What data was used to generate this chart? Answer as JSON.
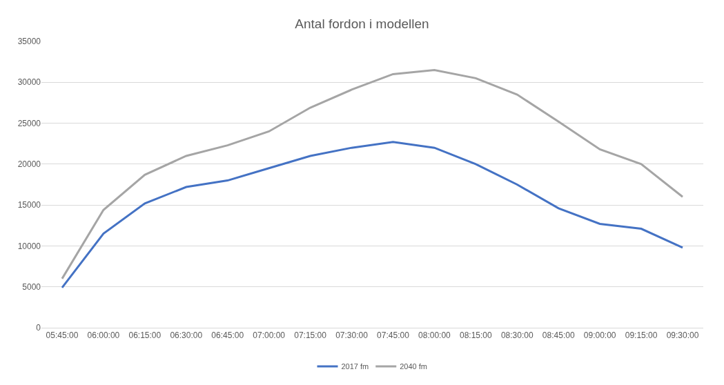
{
  "chart_data": {
    "type": "line",
    "title": "Antal fordon i modellen",
    "categories": [
      "05:45:00",
      "06:00:00",
      "06:15:00",
      "06:30:00",
      "06:45:00",
      "07:00:00",
      "07:15:00",
      "07:30:00",
      "07:45:00",
      "08:00:00",
      "08:15:00",
      "08:30:00",
      "08:45:00",
      "09:00:00",
      "09:15:00",
      "09:30:00"
    ],
    "series": [
      {
        "name": "2017 fm",
        "color": "#4472c4",
        "values": [
          4900,
          11500,
          15200,
          17200,
          18000,
          19500,
          21000,
          22000,
          22700,
          22000,
          20000,
          17500,
          14600,
          12700,
          12100,
          9800
        ]
      },
      {
        "name": "2040 fm",
        "color": "#a5a5a5",
        "values": [
          6000,
          14400,
          18700,
          21000,
          22300,
          24000,
          26900,
          29100,
          31000,
          31500,
          30500,
          28500,
          25200,
          21800,
          20000,
          16000
        ]
      }
    ],
    "ylim": [
      0,
      35000
    ],
    "yticks": [
      0,
      5000,
      10000,
      15000,
      20000,
      25000,
      30000,
      35000
    ],
    "grid": "y",
    "legend": "bottom",
    "marker": "none",
    "line_style": "solid"
  }
}
